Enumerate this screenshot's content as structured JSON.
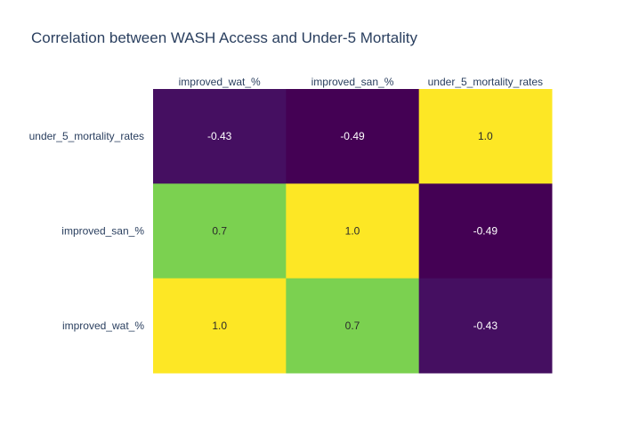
{
  "chart_data": {
    "type": "heatmap",
    "title": "Correlation between WASH Access and Under-5 Mortality",
    "x_categories": [
      "improved_wat_%",
      "improved_san_%",
      "under_5_mortality_rates"
    ],
    "y_categories_top_to_bottom": [
      "under_5_mortality_rates",
      "improved_san_%",
      "improved_wat_%"
    ],
    "values": [
      [
        -0.43,
        -0.49,
        1.0
      ],
      [
        0.7,
        1.0,
        -0.49
      ],
      [
        1.0,
        0.7,
        -0.43
      ]
    ],
    "value_labels": [
      [
        "-0.43",
        "-0.49",
        "1.0"
      ],
      [
        "0.7",
        "1.0",
        "-0.49"
      ],
      [
        "1.0",
        "0.7",
        "-0.43"
      ]
    ],
    "colorscale": "Viridis",
    "zrange": [
      -0.49,
      1.0
    ],
    "show_colorbar": false
  }
}
